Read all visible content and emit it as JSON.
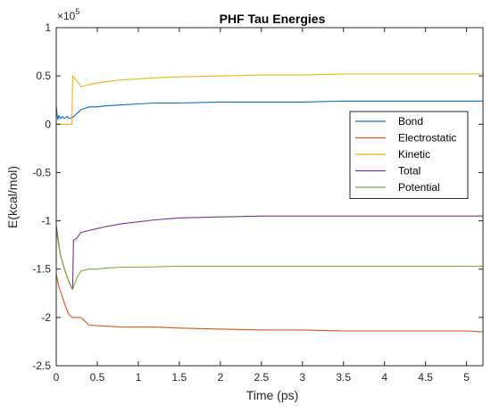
{
  "chart_data": {
    "type": "line",
    "title": "PHF Tau Energies",
    "xlabel": "Time (ps)",
    "ylabel": "E(kcal/mol)",
    "exponent_label": "×10",
    "exponent_power": "5",
    "xlim": [
      0,
      5.2
    ],
    "ylim": [
      -2.5,
      1
    ],
    "xticks": [
      0,
      0.5,
      1,
      1.5,
      2,
      2.5,
      3,
      3.5,
      4,
      4.5,
      5
    ],
    "xtick_labels": [
      "0",
      "0.5",
      "1",
      "1.5",
      "2",
      "2.5",
      "3",
      "3.5",
      "4",
      "4.5",
      "5"
    ],
    "yticks": [
      1,
      0.5,
      0,
      -0.5,
      -1,
      -1.5,
      -2,
      -2.5
    ],
    "ytick_labels": [
      "1",
      "0.5",
      "0",
      "-0.5",
      "-1",
      "-1.5",
      "-2",
      "-2.5"
    ],
    "y_units_multiplier": 100000,
    "grid": false,
    "legend_position": "right",
    "series": [
      {
        "name": "Bond",
        "color": "#0072BD",
        "x": [
          0,
          0.01,
          0.02,
          0.03,
          0.05,
          0.07,
          0.1,
          0.13,
          0.16,
          0.19,
          0.2,
          0.25,
          0.3,
          0.4,
          0.5,
          0.6,
          0.8,
          1.0,
          1.2,
          1.5,
          2.0,
          2.5,
          3.0,
          3.5,
          4.0,
          4.5,
          5.0,
          5.2
        ],
        "y": [
          0.19,
          0.1,
          0.05,
          0.09,
          0.06,
          0.08,
          0.06,
          0.08,
          0.06,
          0.07,
          0.07,
          0.11,
          0.15,
          0.18,
          0.18,
          0.19,
          0.2,
          0.21,
          0.22,
          0.22,
          0.23,
          0.23,
          0.23,
          0.24,
          0.24,
          0.24,
          0.24,
          0.24
        ]
      },
      {
        "name": "Electrostatic",
        "color": "#D95319",
        "x": [
          0,
          0.03,
          0.06,
          0.09,
          0.12,
          0.15,
          0.18,
          0.2,
          0.25,
          0.3,
          0.35,
          0.4,
          0.6,
          0.8,
          1.0,
          1.2,
          1.5,
          2.0,
          2.5,
          3.0,
          3.5,
          4.0,
          4.5,
          5.0,
          5.2
        ],
        "y": [
          -1.55,
          -1.68,
          -1.75,
          -1.83,
          -1.9,
          -1.96,
          -1.99,
          -2.0,
          -2.0,
          -2.0,
          -2.04,
          -2.08,
          -2.09,
          -2.1,
          -2.1,
          -2.1,
          -2.11,
          -2.12,
          -2.13,
          -2.13,
          -2.14,
          -2.14,
          -2.14,
          -2.14,
          -2.15
        ]
      },
      {
        "name": "Kinetic",
        "color": "#EDB120",
        "x": [
          0,
          0.05,
          0.1,
          0.15,
          0.19,
          0.2,
          0.25,
          0.3,
          0.35,
          0.45,
          0.6,
          0.8,
          1.0,
          1.2,
          1.5,
          2.0,
          2.5,
          3.0,
          3.5,
          4.0,
          4.5,
          5.0,
          5.2
        ],
        "y": [
          0.0,
          0.0,
          0.0,
          0.0,
          0.0,
          0.5,
          0.45,
          0.39,
          0.4,
          0.42,
          0.44,
          0.46,
          0.47,
          0.48,
          0.49,
          0.5,
          0.51,
          0.51,
          0.52,
          0.52,
          0.52,
          0.52,
          0.52
        ]
      },
      {
        "name": "Total",
        "color": "#7E2F8E",
        "x": [
          0,
          0.05,
          0.1,
          0.15,
          0.19,
          0.2,
          0.21,
          0.25,
          0.3,
          0.4,
          0.5,
          0.6,
          0.8,
          1.0,
          1.2,
          1.5,
          2.0,
          2.5,
          3.0,
          3.5,
          4.0,
          4.5,
          5.0,
          5.2
        ],
        "y": [
          -1.05,
          -1.35,
          -1.5,
          -1.62,
          -1.7,
          -1.7,
          -1.2,
          -1.18,
          -1.12,
          -1.1,
          -1.08,
          -1.06,
          -1.03,
          -1.01,
          -0.99,
          -0.97,
          -0.96,
          -0.95,
          -0.95,
          -0.95,
          -0.95,
          -0.95,
          -0.95,
          -0.95
        ]
      },
      {
        "name": "Potential",
        "color": "#77AC30",
        "x": [
          0,
          0.05,
          0.1,
          0.15,
          0.2,
          0.25,
          0.3,
          0.4,
          0.5,
          0.6,
          0.8,
          1.0,
          1.5,
          2.0,
          2.5,
          3.0,
          3.5,
          4.0,
          4.5,
          5.0,
          5.2
        ],
        "y": [
          -1.1,
          -1.35,
          -1.5,
          -1.62,
          -1.71,
          -1.59,
          -1.52,
          -1.5,
          -1.5,
          -1.49,
          -1.48,
          -1.48,
          -1.47,
          -1.47,
          -1.47,
          -1.47,
          -1.47,
          -1.47,
          -1.47,
          -1.47,
          -1.47
        ]
      }
    ]
  }
}
